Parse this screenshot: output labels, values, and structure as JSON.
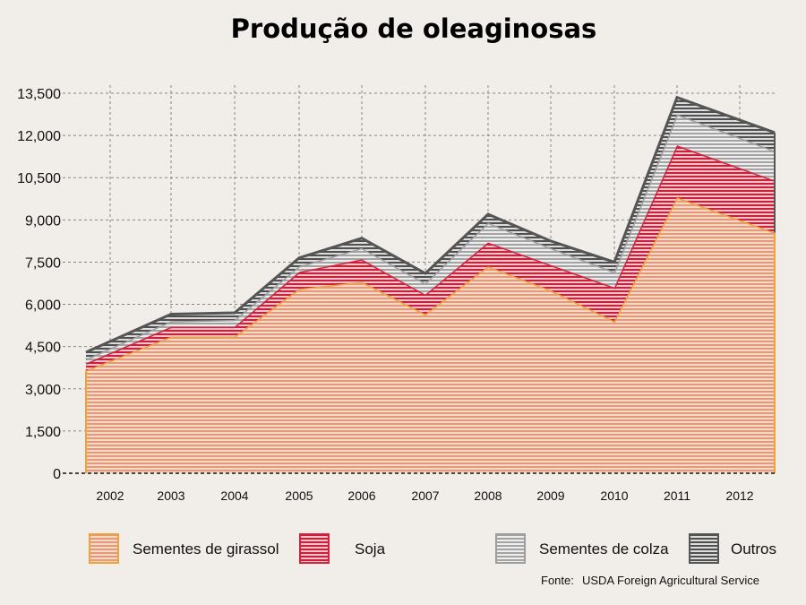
{
  "chart_data": {
    "type": "area",
    "stacked": true,
    "title": "Produção de oleaginosas",
    "categories": [
      "2002",
      "2003",
      "2004",
      "2005",
      "2006",
      "2007",
      "2008",
      "2009",
      "2010",
      "2011",
      "2012"
    ],
    "ylim": [
      0,
      13500
    ],
    "yticks": [
      0,
      1500,
      3000,
      4500,
      6000,
      7500,
      9000,
      10500,
      12000,
      13500
    ],
    "ytick_labels": [
      "0",
      "1,500",
      "3,000",
      "4,500",
      "6,000",
      "7,500",
      "9,000",
      "10,500",
      "12,000",
      "13,500"
    ],
    "grid": true,
    "legend_position": "bottom",
    "series": [
      {
        "name": "Sementes de girassol",
        "color": "#f0a23a",
        "fill": "#e39a7a",
        "values": [
          3650,
          4850,
          4850,
          6550,
          6800,
          5650,
          7350,
          6500,
          5400,
          9800,
          8550
        ]
      },
      {
        "name": "Soja",
        "color": "#d3223d",
        "fill": "#c8213c",
        "values": [
          250,
          350,
          350,
          600,
          800,
          700,
          850,
          900,
          1200,
          1850,
          1850
        ]
      },
      {
        "name": "Sementes de colza",
        "color": "#9e9e9e",
        "fill": "#a3a3a3",
        "values": [
          150,
          200,
          250,
          200,
          400,
          400,
          700,
          600,
          550,
          1100,
          1050
        ]
      },
      {
        "name": "Outros",
        "color": "#555555",
        "fill": "#505050",
        "values": [
          250,
          250,
          250,
          300,
          350,
          350,
          300,
          250,
          350,
          600,
          650
        ]
      }
    ],
    "source_label": "Fonte:",
    "source_text": "USDA Foreign Agricultural Service"
  }
}
